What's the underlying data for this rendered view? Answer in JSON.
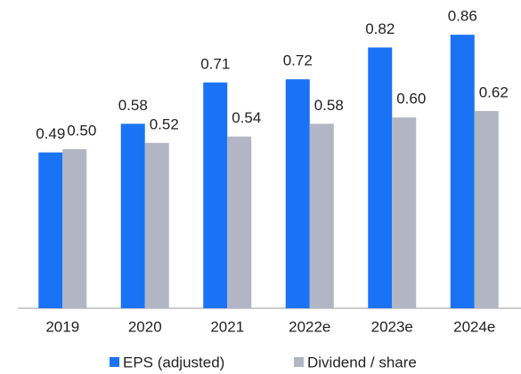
{
  "chart_data": {
    "type": "bar",
    "categories": [
      "2019",
      "2020",
      "2021",
      "2022e",
      "2023e",
      "2024e"
    ],
    "series": [
      {
        "name": "EPS (adjusted)",
        "color": "#1a73f5",
        "values": [
          0.49,
          0.58,
          0.71,
          0.72,
          0.82,
          0.86
        ],
        "value_labels": [
          "0.49",
          "0.58",
          "0.71",
          "0.72",
          "0.82",
          "0.86"
        ]
      },
      {
        "name": "Dividend / share",
        "color": "#b1b5c4",
        "values": [
          0.5,
          0.52,
          0.54,
          0.58,
          0.6,
          0.62
        ],
        "value_labels": [
          "0.50",
          "0.52",
          "0.54",
          "0.58",
          "0.60",
          "0.62"
        ]
      }
    ],
    "legend": "bottom"
  }
}
